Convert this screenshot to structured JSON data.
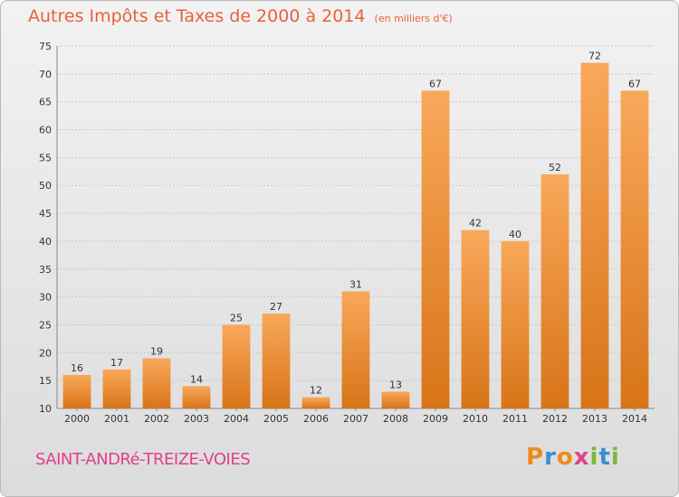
{
  "header": {
    "title": "Autres Impôts et Taxes de 2000 à 2014",
    "subtitle": "(en milliers d'€)"
  },
  "footer": {
    "commune": "SAINT-ANDRé-TREIZE-VOIES",
    "logo_text": "Proxiti"
  },
  "colors": {
    "title": "#e8613b",
    "commune": "#e0418a",
    "bar_top": "#f9a85a",
    "bar_bottom": "#d87418",
    "grid": "#c8c8c8",
    "axis_text": "#333333",
    "logo_letters": [
      "#f08a1c",
      "#3a8fd0",
      "#f08a1c",
      "#e0418a",
      "#7bb83a",
      "#3a8fd0",
      "#7bb83a"
    ]
  },
  "chart_data": {
    "type": "bar",
    "title": "Autres Impôts et Taxes de 2000 à 2014",
    "subtitle": "(en milliers d'€)",
    "xlabel": "",
    "ylabel": "",
    "categories": [
      "2000",
      "2001",
      "2002",
      "2003",
      "2004",
      "2005",
      "2006",
      "2007",
      "2008",
      "2009",
      "2010",
      "2011",
      "2012",
      "2013",
      "2014"
    ],
    "values": [
      16,
      17,
      19,
      14,
      25,
      27,
      12,
      31,
      13,
      67,
      42,
      40,
      52,
      72,
      67
    ],
    "ylim": [
      10,
      75
    ],
    "yticks": [
      10,
      15,
      20,
      25,
      30,
      35,
      40,
      45,
      50,
      55,
      60,
      65,
      70,
      75
    ],
    "grid": true,
    "data_labels": true
  }
}
